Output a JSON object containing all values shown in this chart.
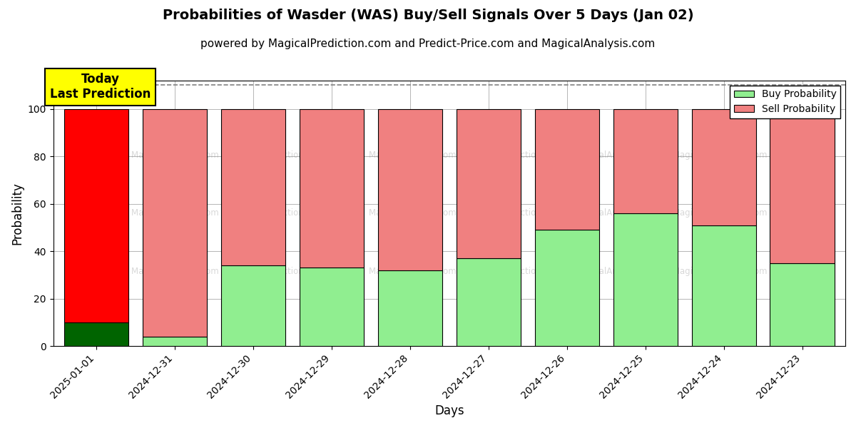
{
  "title": "Probabilities of Wasder (WAS) Buy/Sell Signals Over 5 Days (Jan 02)",
  "subtitle": "powered by MagicalPrediction.com and Predict-Price.com and MagicalAnalysis.com",
  "xlabel": "Days",
  "ylabel": "Probability",
  "categories": [
    "2025-01-01",
    "2024-12-31",
    "2024-12-30",
    "2024-12-29",
    "2024-12-28",
    "2024-12-27",
    "2024-12-26",
    "2024-12-25",
    "2024-12-24",
    "2024-12-23"
  ],
  "buy_values": [
    10,
    4,
    34,
    33,
    32,
    37,
    49,
    56,
    51,
    35
  ],
  "sell_values": [
    90,
    96,
    66,
    67,
    68,
    63,
    51,
    44,
    49,
    65
  ],
  "buy_colors": [
    "#006400",
    "#90EE90",
    "#90EE90",
    "#90EE90",
    "#90EE90",
    "#90EE90",
    "#90EE90",
    "#90EE90",
    "#90EE90",
    "#90EE90"
  ],
  "sell_colors": [
    "#FF0000",
    "#F08080",
    "#F08080",
    "#F08080",
    "#F08080",
    "#F08080",
    "#F08080",
    "#F08080",
    "#F08080",
    "#F08080"
  ],
  "legend_buy_color": "#90EE90",
  "legend_sell_color": "#F08080",
  "today_label": "Today\nLast Prediction",
  "today_index": 0,
  "ylim": [
    0,
    112
  ],
  "yticks": [
    0,
    20,
    40,
    60,
    80,
    100
  ],
  "dashed_line_y": 110,
  "background_color": "#ffffff",
  "grid_color": "#aaaaaa",
  "title_fontsize": 14,
  "subtitle_fontsize": 11,
  "axis_label_fontsize": 12,
  "tick_fontsize": 10,
  "bar_width": 0.82
}
